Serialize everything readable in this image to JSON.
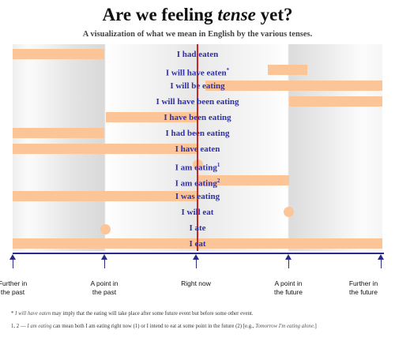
{
  "title": "Are we feeling tense yet?",
  "title_parts": {
    "a": "Are we feeling ",
    "b": "tense",
    "c": " yet?"
  },
  "subtitle": "A visualization of what we mean in English by the various  tenses.",
  "colors": {
    "bar": "#fbc598",
    "label": "#2f2fb0",
    "now_line": "#c62828",
    "axis": "#2a2a8a"
  },
  "rows": [
    {
      "label": "I had eaten"
    },
    {
      "label": "I will have eaten",
      "sup": "*"
    },
    {
      "label": "I will be eating"
    },
    {
      "label": "I will have been eating"
    },
    {
      "label": "I have been eating"
    },
    {
      "label": "I had been eating"
    },
    {
      "label": "I have eaten"
    },
    {
      "label": "I am eating",
      "sup": "1"
    },
    {
      "label": "I am eating",
      "sup": "2"
    },
    {
      "label": "I was eating"
    },
    {
      "label": "I will eat"
    },
    {
      "label": "I ate"
    },
    {
      "label": "I eat"
    }
  ],
  "axis_labels": [
    {
      "line1": "Further in",
      "line2": "the past"
    },
    {
      "line1": "A point in",
      "line2": "the past"
    },
    {
      "line1": "Right now",
      "line2": ""
    },
    {
      "line1": "A point in",
      "line2": "the future"
    },
    {
      "line1": "Further in",
      "line2": "the future"
    }
  ],
  "footnote1": {
    "mark": "* ",
    "italic": "I will have eaten",
    "rest": " may imply that the eating will take place after some future event but before some other event."
  },
  "footnote2": {
    "a": "1, 2 — ",
    "italic1": "I am eating",
    "b": " can mean both I am eating right now (1) or I intend to eat at some point in the future (2) [e.g., ",
    "italic2": "Tomorrow I'm eating alone.",
    "c": "]"
  }
}
